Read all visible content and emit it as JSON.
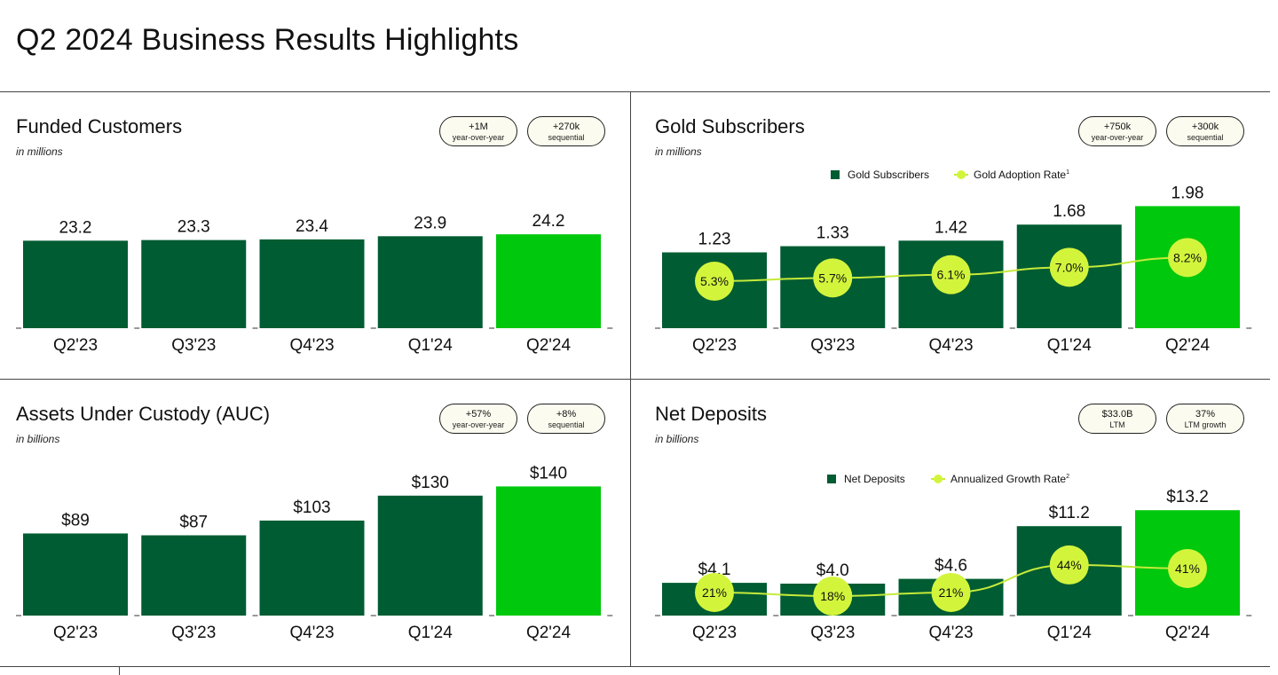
{
  "page": {
    "title": "Q2 2024 Business Results Highlights"
  },
  "colors": {
    "dark_green": "#005c32",
    "bright_green": "#00c80d",
    "lime": "#d2f53c",
    "lime_line": "#c5ea3a"
  },
  "panels": [
    {
      "title": "Funded Customers",
      "unit": "in millions",
      "badges": [
        {
          "value": "+1M",
          "label": "year-over-year"
        },
        {
          "value": "+270k",
          "label": "sequential"
        }
      ]
    },
    {
      "title": "Gold Subscribers",
      "unit": "in millions",
      "badges": [
        {
          "value": "+750k",
          "label": "year-over-year"
        },
        {
          "value": "+300k",
          "label": "sequential"
        }
      ],
      "legend": {
        "bar": "Gold Subscribers",
        "line": "Gold Adoption Rate",
        "line_sup": "1"
      }
    },
    {
      "title": "Assets Under Custody (AUC)",
      "unit": "in billions",
      "badges": [
        {
          "value": "+57%",
          "label": "year-over-year"
        },
        {
          "value": "+8%",
          "label": "sequential"
        }
      ]
    },
    {
      "title": "Net Deposits",
      "unit": "in billions",
      "badges": [
        {
          "value": "$33.0B",
          "label": "LTM"
        },
        {
          "value": "37%",
          "label": "LTM growth"
        }
      ],
      "legend": {
        "bar": "Net Deposits",
        "line": "Annualized Growth Rate",
        "line_sup": "2"
      }
    }
  ],
  "chart_data": [
    {
      "type": "bar",
      "title": "Funded Customers",
      "ylabel": "in millions",
      "categories": [
        "Q2'23",
        "Q3'23",
        "Q4'23",
        "Q1'24",
        "Q2'24"
      ],
      "values": [
        23.2,
        23.3,
        23.4,
        23.9,
        24.2
      ],
      "labels": [
        "23.2",
        "23.3",
        "23.4",
        "23.9",
        "24.2"
      ],
      "highlight_last": true
    },
    {
      "type": "bar",
      "title": "Gold Subscribers",
      "ylabel": "in millions",
      "categories": [
        "Q2'23",
        "Q3'23",
        "Q4'23",
        "Q1'24",
        "Q2'24"
      ],
      "values": [
        1.23,
        1.33,
        1.42,
        1.68,
        1.98
      ],
      "labels": [
        "1.23",
        "1.33",
        "1.42",
        "1.68",
        "1.98"
      ],
      "highlight_last": true,
      "line_series": {
        "name": "Gold Adoption Rate",
        "values": [
          5.3,
          5.7,
          6.1,
          7.0,
          8.2
        ],
        "labels": [
          "5.3%",
          "5.7%",
          "6.1%",
          "7.0%",
          "8.2%"
        ]
      },
      "legend": "top-center"
    },
    {
      "type": "bar",
      "title": "Assets Under Custody (AUC)",
      "ylabel": "in billions",
      "categories": [
        "Q2'23",
        "Q3'23",
        "Q4'23",
        "Q1'24",
        "Q2'24"
      ],
      "values": [
        89,
        87,
        103,
        130,
        140
      ],
      "labels": [
        "$89",
        "$87",
        "$103",
        "$130",
        "$140"
      ],
      "highlight_last": true
    },
    {
      "type": "bar",
      "title": "Net Deposits",
      "ylabel": "in billions",
      "categories": [
        "Q2'23",
        "Q3'23",
        "Q4'23",
        "Q1'24",
        "Q2'24"
      ],
      "values": [
        4.1,
        4.0,
        4.6,
        11.2,
        13.2
      ],
      "labels": [
        "$4.1",
        "$4.0",
        "$4.6",
        "$11.2",
        "$13.2"
      ],
      "highlight_last": true,
      "line_series": {
        "name": "Annualized Growth Rate",
        "values": [
          21,
          18,
          21,
          44,
          41
        ],
        "labels": [
          "21%",
          "18%",
          "21%",
          "44%",
          "41%"
        ]
      },
      "legend": "top-center"
    }
  ]
}
